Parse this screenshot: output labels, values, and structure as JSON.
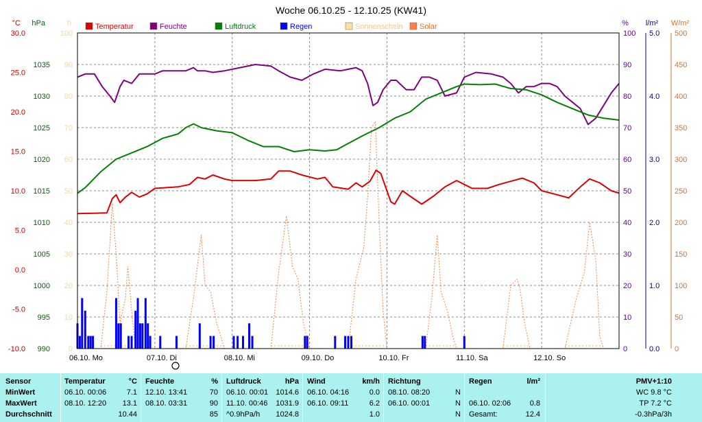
{
  "window": {
    "title": "Woche 06.10.25 - 12.10.25 (KW41)"
  },
  "axes": {
    "left_temp": {
      "unit": "°C",
      "ticks": [
        "30.0",
        "25.0",
        "20.0",
        "15.0",
        "10.0",
        "5.0",
        "0.0",
        "-5.0",
        "-10.0"
      ],
      "color": "#cc0000"
    },
    "left_pressure": {
      "unit": "hPa",
      "ticks": [
        "1035",
        "1030",
        "1025",
        "1020",
        "1015",
        "1010",
        "1005",
        "1000",
        "995",
        "990"
      ],
      "color": "#006600"
    },
    "left_sun": {
      "unit": "h",
      "ticks": [
        "100",
        "90",
        "80",
        "70",
        "60",
        "50",
        "40",
        "30",
        "20",
        "10",
        "0"
      ],
      "color": "#f5d7a0"
    },
    "right_humidity": {
      "unit": "%",
      "ticks": [
        "100",
        "90",
        "80",
        "70",
        "60",
        "50",
        "40",
        "30",
        "20",
        "10",
        "0"
      ],
      "color": "#660099"
    },
    "right_rain": {
      "unit": "l/m²",
      "ticks": [
        "5.0",
        "4.0",
        "3.0",
        "2.0",
        "1.0",
        "0.0"
      ],
      "color": "#000099"
    },
    "right_solar": {
      "unit": "W/m²",
      "ticks": [
        "500",
        "450",
        "400",
        "350",
        "300",
        "250",
        "200",
        "150",
        "100",
        "50",
        "0"
      ],
      "color": "#e07020"
    },
    "x_days": [
      "06.10. Mo",
      "07.10. Di",
      "08.10. Mi",
      "09.10. Do",
      "10.10. Fr",
      "11.10. Sa",
      "12.10. So"
    ]
  },
  "legend": [
    {
      "label": "Temperatur",
      "color": "#dd0000"
    },
    {
      "label": "Feuchte",
      "color": "#800080"
    },
    {
      "label": "Luftdruck",
      "color": "#008000"
    },
    {
      "label": "Regen",
      "color": "#0000ff"
    },
    {
      "label": "Sonnenschein",
      "color": "#ffe0a0"
    },
    {
      "label": "Solar",
      "color": "#ff8040"
    }
  ],
  "chart_data": {
    "type": "line",
    "title": "Woche 06.10.25 - 12.10.25 (KW41)",
    "x_range_days": [
      0,
      7
    ],
    "grid": true,
    "series": [
      {
        "name": "Temperatur",
        "unit": "°C",
        "color": "#dd0000",
        "points": [
          [
            0,
            7.1
          ],
          [
            0.38,
            7.2
          ],
          [
            0.45,
            9
          ],
          [
            0.5,
            9.5
          ],
          [
            0.55,
            8.5
          ],
          [
            0.62,
            9.2
          ],
          [
            0.7,
            9.8
          ],
          [
            0.8,
            9.2
          ],
          [
            0.9,
            9.6
          ],
          [
            1,
            10.3
          ],
          [
            1.3,
            10.5
          ],
          [
            1.45,
            10.8
          ],
          [
            1.55,
            11.7
          ],
          [
            1.65,
            11.5
          ],
          [
            1.75,
            12
          ],
          [
            1.9,
            11.5
          ],
          [
            2,
            11.3
          ],
          [
            2.3,
            11.3
          ],
          [
            2.5,
            11.5
          ],
          [
            2.6,
            12.5
          ],
          [
            2.75,
            12.5
          ],
          [
            2.9,
            12
          ],
          [
            3.1,
            11.5
          ],
          [
            3.2,
            11.7
          ],
          [
            3.3,
            10.5
          ],
          [
            3.5,
            10.2
          ],
          [
            3.6,
            11
          ],
          [
            3.68,
            10.5
          ],
          [
            3.78,
            11.2
          ],
          [
            3.86,
            12.6
          ],
          [
            3.92,
            12.2
          ],
          [
            4.0,
            10
          ],
          [
            4.05,
            8.6
          ],
          [
            4.1,
            8.3
          ],
          [
            4.2,
            10
          ],
          [
            4.3,
            9.3
          ],
          [
            4.45,
            8.3
          ],
          [
            4.6,
            9.3
          ],
          [
            4.75,
            10.5
          ],
          [
            4.9,
            11.3
          ],
          [
            5.0,
            10.8
          ],
          [
            5.1,
            10.3
          ],
          [
            5.3,
            10.3
          ],
          [
            5.45,
            10.8
          ],
          [
            5.6,
            11.2
          ],
          [
            5.75,
            11.6
          ],
          [
            5.9,
            11
          ],
          [
            6.0,
            10
          ],
          [
            6.2,
            9.5
          ],
          [
            6.35,
            9.1
          ],
          [
            6.5,
            10.5
          ],
          [
            6.62,
            11.5
          ],
          [
            6.75,
            11
          ],
          [
            6.9,
            10
          ],
          [
            7,
            9.7
          ]
        ]
      },
      {
        "name": "Feuchte",
        "unit": "%",
        "color": "#800080",
        "points": [
          [
            0,
            86
          ],
          [
            0.1,
            87
          ],
          [
            0.22,
            87
          ],
          [
            0.32,
            83
          ],
          [
            0.42,
            80
          ],
          [
            0.48,
            78
          ],
          [
            0.55,
            83
          ],
          [
            0.6,
            85
          ],
          [
            0.7,
            84
          ],
          [
            0.8,
            87
          ],
          [
            1,
            87
          ],
          [
            1.1,
            88
          ],
          [
            1.4,
            88
          ],
          [
            1.5,
            89
          ],
          [
            1.55,
            88
          ],
          [
            1.65,
            88
          ],
          [
            1.75,
            87.5
          ],
          [
            1.9,
            88
          ],
          [
            2.1,
            89
          ],
          [
            2.3,
            90
          ],
          [
            2.5,
            89.5
          ],
          [
            2.6,
            88
          ],
          [
            2.75,
            86
          ],
          [
            2.9,
            85
          ],
          [
            3.05,
            87
          ],
          [
            3.2,
            88.5
          ],
          [
            3.4,
            88
          ],
          [
            3.6,
            89
          ],
          [
            3.68,
            88
          ],
          [
            3.75,
            84
          ],
          [
            3.82,
            77
          ],
          [
            3.88,
            78
          ],
          [
            3.95,
            82
          ],
          [
            4.05,
            85
          ],
          [
            4.12,
            85
          ],
          [
            4.25,
            82
          ],
          [
            4.35,
            82
          ],
          [
            4.45,
            86
          ],
          [
            4.55,
            86
          ],
          [
            4.65,
            85
          ],
          [
            4.75,
            80
          ],
          [
            4.9,
            81
          ],
          [
            5.0,
            86
          ],
          [
            5.15,
            87.5
          ],
          [
            5.35,
            87
          ],
          [
            5.5,
            86
          ],
          [
            5.6,
            84
          ],
          [
            5.7,
            81
          ],
          [
            5.8,
            83
          ],
          [
            5.9,
            83
          ],
          [
            6.0,
            84
          ],
          [
            6.1,
            84
          ],
          [
            6.2,
            83
          ],
          [
            6.3,
            80
          ],
          [
            6.4,
            78
          ],
          [
            6.5,
            76
          ],
          [
            6.6,
            71
          ],
          [
            6.7,
            73
          ],
          [
            6.8,
            77
          ],
          [
            6.9,
            81
          ],
          [
            7,
            84
          ]
        ]
      },
      {
        "name": "Luftdruck",
        "unit": "hPa",
        "color": "#008000",
        "points": [
          [
            0,
            1014.6
          ],
          [
            0.1,
            1015.5
          ],
          [
            0.3,
            1018
          ],
          [
            0.5,
            1020
          ],
          [
            0.7,
            1021
          ],
          [
            0.9,
            1022
          ],
          [
            1.1,
            1023.3
          ],
          [
            1.3,
            1024
          ],
          [
            1.4,
            1025
          ],
          [
            1.5,
            1025.6
          ],
          [
            1.6,
            1025
          ],
          [
            1.8,
            1024.5
          ],
          [
            2.0,
            1024.2
          ],
          [
            2.2,
            1023
          ],
          [
            2.4,
            1022
          ],
          [
            2.6,
            1022
          ],
          [
            2.8,
            1021.2
          ],
          [
            3.0,
            1021.5
          ],
          [
            3.2,
            1021.3
          ],
          [
            3.35,
            1021.5
          ],
          [
            3.5,
            1022.5
          ],
          [
            3.7,
            1023.8
          ],
          [
            3.9,
            1025
          ],
          [
            4.1,
            1026.5
          ],
          [
            4.3,
            1027.5
          ],
          [
            4.5,
            1029.5
          ],
          [
            4.7,
            1030.5
          ],
          [
            4.9,
            1031.5
          ],
          [
            5.0,
            1031.9
          ],
          [
            5.2,
            1031.8
          ],
          [
            5.4,
            1031.9
          ],
          [
            5.6,
            1031.2
          ],
          [
            5.8,
            1031
          ],
          [
            6.0,
            1030.2
          ],
          [
            6.2,
            1029
          ],
          [
            6.4,
            1028
          ],
          [
            6.6,
            1027
          ],
          [
            6.8,
            1026.5
          ],
          [
            7,
            1026.2
          ]
        ]
      },
      {
        "name": "Solar",
        "unit": "W/m²",
        "color": "#ff8040",
        "points": [
          [
            0,
            0
          ],
          [
            0.3,
            0
          ],
          [
            0.38,
            90
          ],
          [
            0.45,
            230
          ],
          [
            0.5,
            150
          ],
          [
            0.55,
            40
          ],
          [
            0.62,
            80
          ],
          [
            0.65,
            130
          ],
          [
            0.7,
            60
          ],
          [
            0.75,
            0
          ],
          [
            1.4,
            0
          ],
          [
            1.5,
            80
          ],
          [
            1.6,
            180
          ],
          [
            1.65,
            100
          ],
          [
            1.72,
            90
          ],
          [
            1.8,
            40
          ],
          [
            1.9,
            0
          ],
          [
            2.5,
            0
          ],
          [
            2.6,
            120
          ],
          [
            2.7,
            210
          ],
          [
            2.78,
            130
          ],
          [
            2.85,
            110
          ],
          [
            2.92,
            40
          ],
          [
            3.0,
            0
          ],
          [
            3.5,
            0
          ],
          [
            3.6,
            110
          ],
          [
            3.7,
            160
          ],
          [
            3.75,
            240
          ],
          [
            3.8,
            350
          ],
          [
            3.85,
            360
          ],
          [
            3.9,
            200
          ],
          [
            3.95,
            60
          ],
          [
            4.0,
            0
          ],
          [
            4.5,
            0
          ],
          [
            4.58,
            80
          ],
          [
            4.65,
            180
          ],
          [
            4.7,
            90
          ],
          [
            4.78,
            60
          ],
          [
            4.85,
            20
          ],
          [
            4.9,
            0
          ],
          [
            5.5,
            0
          ],
          [
            5.6,
            100
          ],
          [
            5.68,
            110
          ],
          [
            5.72,
            95
          ],
          [
            5.78,
            40
          ],
          [
            5.85,
            0
          ],
          [
            6.3,
            0
          ],
          [
            6.45,
            80
          ],
          [
            6.55,
            120
          ],
          [
            6.62,
            200
          ],
          [
            6.7,
            140
          ],
          [
            6.75,
            20
          ],
          [
            6.8,
            0
          ],
          [
            7,
            0
          ]
        ]
      }
    ],
    "rain_bars": {
      "name": "Regen",
      "unit": "l/m²",
      "color": "#0000ff",
      "points": [
        [
          0.0,
          0.4
        ],
        [
          0.03,
          0.2
        ],
        [
          0.06,
          0.8
        ],
        [
          0.1,
          0.6
        ],
        [
          0.14,
          0.2
        ],
        [
          0.17,
          0.2
        ],
        [
          0.2,
          0.2
        ],
        [
          0.5,
          0.8
        ],
        [
          0.53,
          0.4
        ],
        [
          0.56,
          0.4
        ],
        [
          0.66,
          0.2
        ],
        [
          0.7,
          0.2
        ],
        [
          0.75,
          0.6
        ],
        [
          0.78,
          0.8
        ],
        [
          0.81,
          0.4
        ],
        [
          0.84,
          0.4
        ],
        [
          0.88,
          0.8
        ],
        [
          0.91,
          0.4
        ],
        [
          0.94,
          0.2
        ],
        [
          1.07,
          0.2
        ],
        [
          1.28,
          0.2
        ],
        [
          1.58,
          0.4
        ],
        [
          1.72,
          0.2
        ],
        [
          1.76,
          0.2
        ],
        [
          2.02,
          0.2
        ],
        [
          2.07,
          0.2
        ],
        [
          2.14,
          0.2
        ],
        [
          2.22,
          0.4
        ],
        [
          2.26,
          0.2
        ],
        [
          2.94,
          0.2
        ],
        [
          2.97,
          0.2
        ],
        [
          3.33,
          0.2
        ],
        [
          3.46,
          0.2
        ],
        [
          3.5,
          0.2
        ],
        [
          3.54,
          0.2
        ],
        [
          4.46,
          0.2
        ],
        [
          4.49,
          0.2
        ],
        [
          5.0,
          0.2
        ]
      ]
    },
    "sunshine_ticks": {
      "name": "Sonnenschein",
      "color": "#f5d7a0"
    }
  },
  "table": {
    "headers": {
      "sensor": "Sensor",
      "temp": "Temperatur",
      "temp_unit": "°C",
      "hum": "Feuchte",
      "hum_unit": "%",
      "press": "Luftdruck",
      "press_unit": "hPa",
      "wind": "Wind",
      "wind_unit": "km/h",
      "dir": "Richtung",
      "rain": "Regen",
      "rain_unit": "l/m²",
      "pmv": "PMV+1:10"
    },
    "row_labels": [
      "MinWert",
      "MaxWert",
      "Durchschnitt"
    ],
    "temp": [
      [
        "06.10.  00:06",
        "7.1"
      ],
      [
        "08.10.  12:20",
        "13.1"
      ],
      [
        "",
        "10.44"
      ]
    ],
    "hum": [
      [
        "12.10.  13:41",
        "70"
      ],
      [
        "08.10.  03:31",
        "90"
      ],
      [
        "",
        "85"
      ]
    ],
    "press": [
      [
        "06.10.  00:01",
        "1014.6"
      ],
      [
        "11.10.  00:46",
        "1031.9"
      ],
      [
        "^0.9hPa/h",
        "1024.8"
      ]
    ],
    "wind": [
      [
        "06.10.  04:16",
        "0.0"
      ],
      [
        "06.10.  09:11",
        "6.2"
      ],
      [
        "",
        "1.0"
      ]
    ],
    "dir": [
      [
        "08.10.  08:20",
        "N"
      ],
      [
        "06.10.  00:01",
        "N"
      ],
      [
        "",
        "N"
      ]
    ],
    "rain": [
      [
        "",
        ""
      ],
      [
        "06.10.  02:06",
        "0.8"
      ],
      [
        "Gesamt:",
        "12.4"
      ]
    ],
    "pmv": [
      "WC 9.8 °C",
      "TP 7.2 °C",
      "-0.3hPa/3h"
    ]
  }
}
